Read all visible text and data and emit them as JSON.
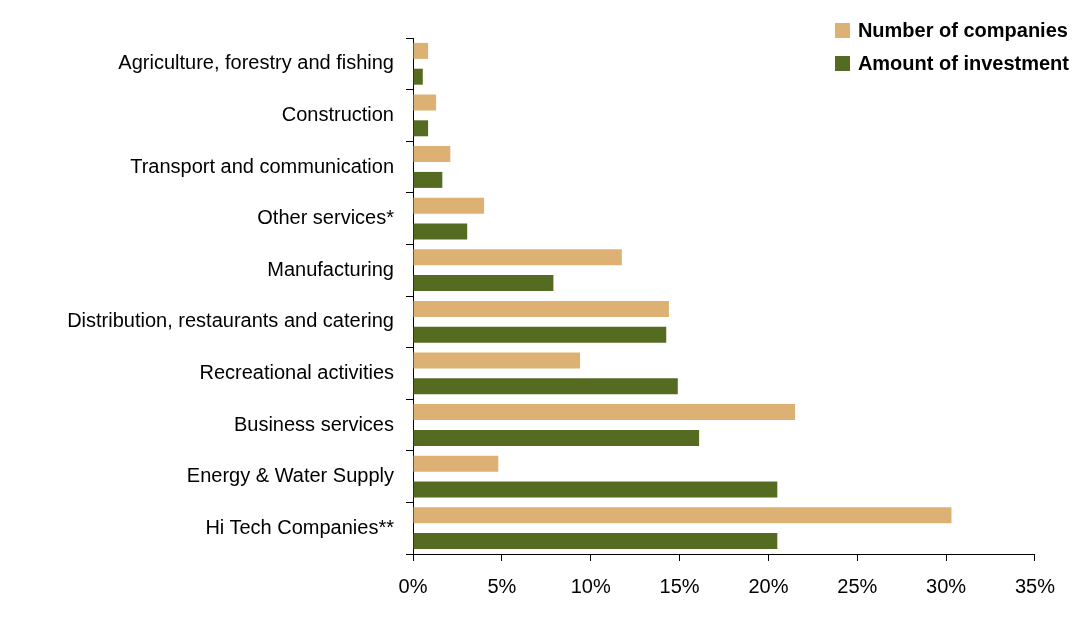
{
  "chart_data": {
    "type": "bar",
    "orientation": "horizontal",
    "categories": [
      "Agriculture, forestry and fishing",
      "Construction",
      "Transport and communication",
      "Other services*",
      "Manufacturing",
      "Distribution, restaurants and catering",
      "Recreational activities",
      "Business services",
      "Energy & Water Supply",
      "Hi Tech Companies**"
    ],
    "series": [
      {
        "name": "Number of companies",
        "color": "#dcb173",
        "values": [
          0.85,
          1.3,
          2.1,
          4.0,
          11.75,
          14.4,
          9.4,
          21.5,
          4.8,
          30.3
        ]
      },
      {
        "name": "Amount of investment",
        "color": "#566b22",
        "values": [
          0.55,
          0.85,
          1.65,
          3.05,
          7.9,
          14.25,
          14.9,
          16.1,
          20.5,
          20.5
        ]
      }
    ],
    "xlim": [
      0,
      35
    ],
    "xticks": [
      {
        "value": 0,
        "label": "0%"
      },
      {
        "value": 5,
        "label": "5%"
      },
      {
        "value": 10,
        "label": "10%"
      },
      {
        "value": 15,
        "label": "15%"
      },
      {
        "value": 20,
        "label": "20%"
      },
      {
        "value": 25,
        "label": "25%"
      },
      {
        "value": 30,
        "label": "30%"
      },
      {
        "value": 35,
        "label": "35%"
      }
    ],
    "grid": false,
    "legend": "top right"
  }
}
